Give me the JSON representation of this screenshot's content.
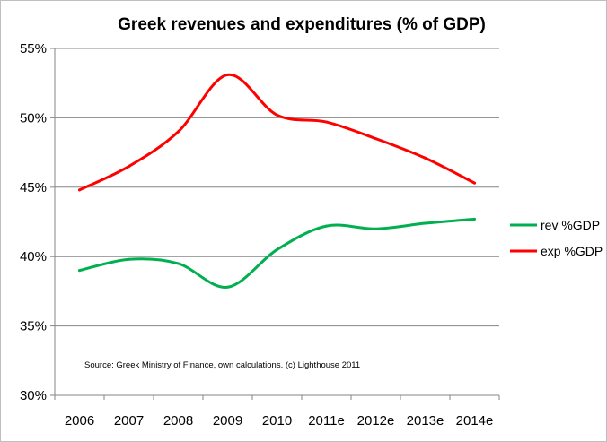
{
  "chart_data": {
    "type": "line",
    "title": "Greek revenues and expenditures (% of GDP)",
    "categories": [
      "2006",
      "2007",
      "2008",
      "2009",
      "2010",
      "2011e",
      "2012e",
      "2013e",
      "2014e"
    ],
    "ylim": [
      30,
      55
    ],
    "ytick_values": [
      30,
      35,
      40,
      45,
      50,
      55
    ],
    "ytick_labels": [
      "30%",
      "35%",
      "40%",
      "45%",
      "50%",
      "55%"
    ],
    "grid": true,
    "legend_position": "right",
    "series": [
      {
        "name": "rev %GDP",
        "color": "#00b050",
        "values": [
          39.0,
          39.8,
          39.5,
          37.8,
          40.5,
          42.2,
          42.0,
          42.4,
          42.7
        ]
      },
      {
        "name": "exp %GDP",
        "color": "#ff0000",
        "values": [
          44.8,
          46.5,
          49.0,
          53.1,
          50.2,
          49.7,
          48.5,
          47.1,
          45.3
        ]
      }
    ],
    "annotation": "Source: Greek Ministry of Finance,  own calculations. (c) Lighthouse 2011"
  }
}
